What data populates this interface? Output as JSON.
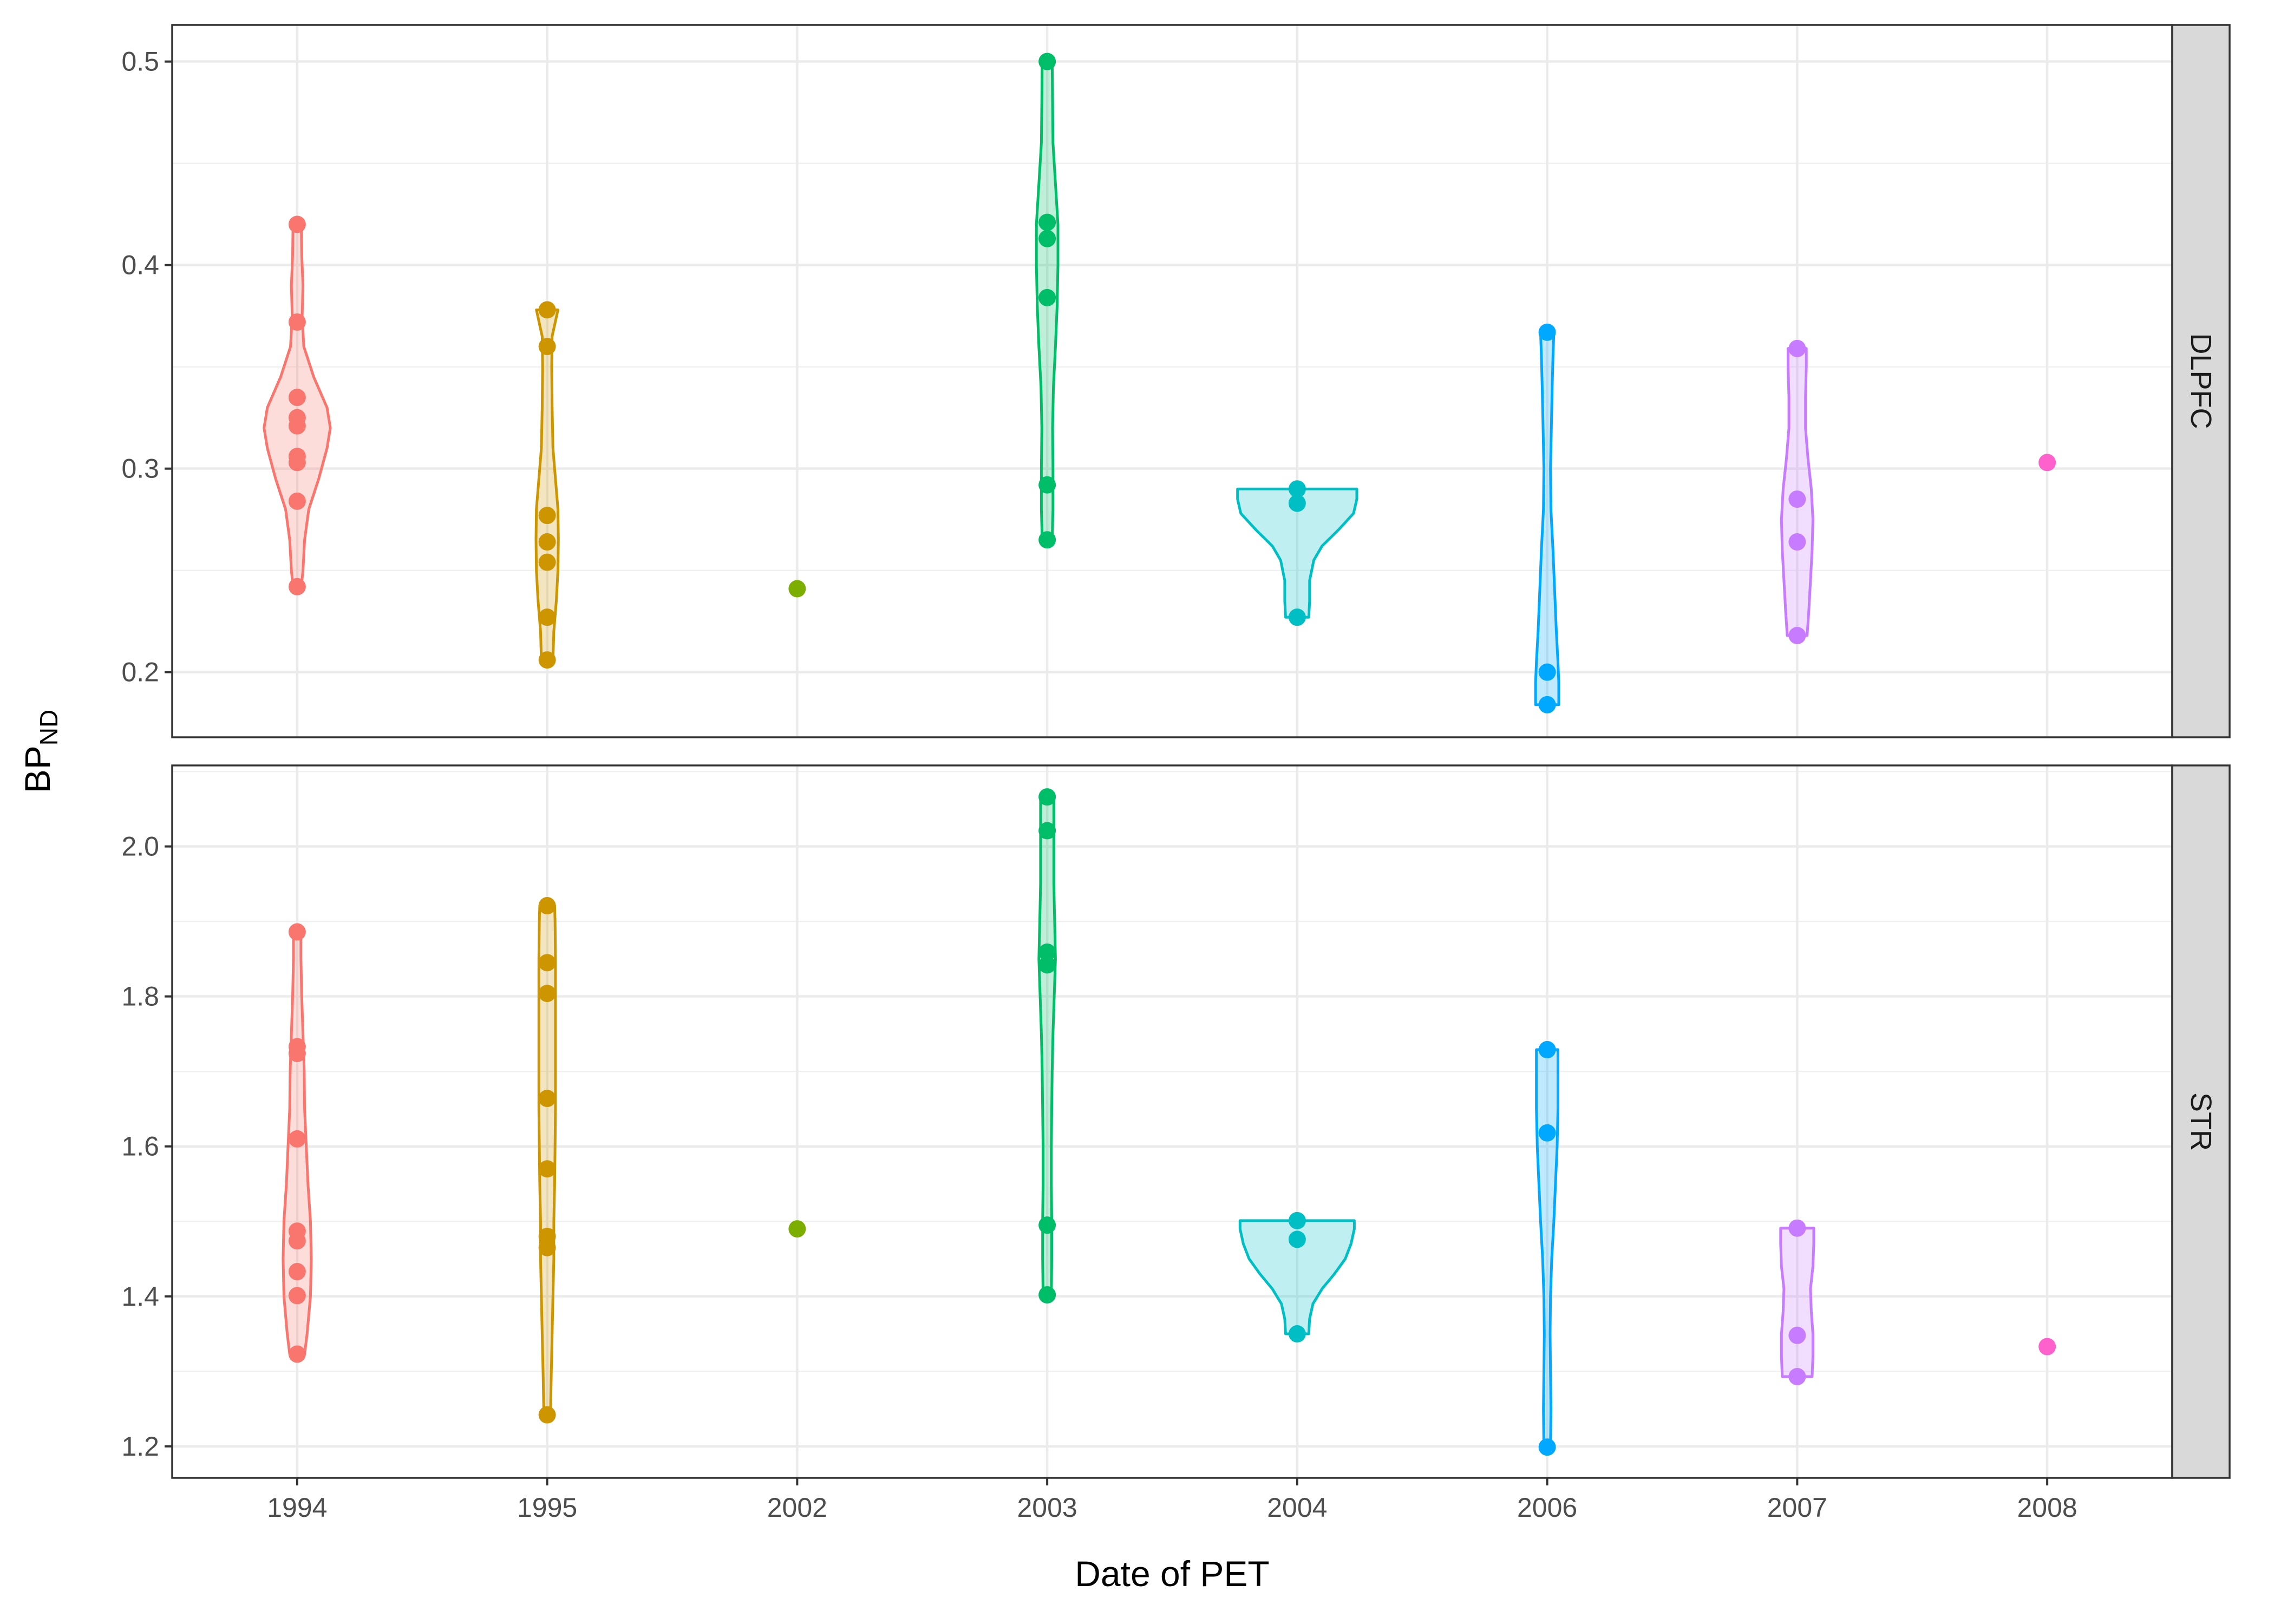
{
  "chart_data": {
    "type": "violin",
    "xlabel": "Date of PET",
    "ylabel": "BP",
    "ylabel_subscript": "ND",
    "categories": [
      "1994",
      "1995",
      "2002",
      "2003",
      "2004",
      "2006",
      "2007",
      "2008"
    ],
    "colors": {
      "1994": "#F8766D",
      "1995": "#CD9600",
      "2002": "#7CAE00",
      "2003": "#00BE67",
      "2004": "#00BFC4",
      "2006": "#00A9FF",
      "2007": "#C77CFF",
      "2008": "#FF61CC"
    },
    "grid": true,
    "panels": [
      {
        "name": "DLPFC",
        "ylim": [
          0.168,
          0.518
        ],
        "yticks": [
          0.2,
          0.3,
          0.4,
          0.5
        ],
        "ytick_labels": [
          "0.2",
          "0.3",
          "0.4",
          "0.5"
        ],
        "groups": [
          {
            "x": "1994",
            "points": [
              0.42,
              0.372,
              0.335,
              0.325,
              0.321,
              0.306,
              0.303,
              0.284,
              0.242
            ],
            "violin": [
              [
                0.242,
                0.05
              ],
              [
                0.25,
                0.07
              ],
              [
                0.265,
                0.09
              ],
              [
                0.28,
                0.14
              ],
              [
                0.295,
                0.26
              ],
              [
                0.31,
                0.36
              ],
              [
                0.32,
                0.4
              ],
              [
                0.33,
                0.36
              ],
              [
                0.345,
                0.2
              ],
              [
                0.36,
                0.08
              ],
              [
                0.375,
                0.06
              ],
              [
                0.39,
                0.07
              ],
              [
                0.405,
                0.055
              ],
              [
                0.42,
                0.05
              ]
            ]
          },
          {
            "x": "1995",
            "points": [
              0.378,
              0.36,
              0.277,
              0.264,
              0.254,
              0.227,
              0.206
            ],
            "violin": [
              [
                0.206,
                0.07
              ],
              [
                0.22,
                0.08
              ],
              [
                0.235,
                0.11
              ],
              [
                0.25,
                0.13
              ],
              [
                0.265,
                0.135
              ],
              [
                0.28,
                0.13
              ],
              [
                0.295,
                0.1
              ],
              [
                0.31,
                0.07
              ],
              [
                0.33,
                0.06
              ],
              [
                0.35,
                0.055
              ],
              [
                0.365,
                0.06
              ],
              [
                0.378,
                0.13
              ]
            ]
          },
          {
            "x": "2002",
            "points": [
              0.241
            ]
          },
          {
            "x": "2003",
            "points": [
              0.5,
              0.421,
              0.413,
              0.384,
              0.292,
              0.265
            ],
            "violin": [
              [
                0.265,
                0.06
              ],
              [
                0.28,
                0.07
              ],
              [
                0.3,
                0.07
              ],
              [
                0.32,
                0.065
              ],
              [
                0.34,
                0.075
              ],
              [
                0.36,
                0.1
              ],
              [
                0.38,
                0.12
              ],
              [
                0.4,
                0.13
              ],
              [
                0.42,
                0.13
              ],
              [
                0.44,
                0.1
              ],
              [
                0.46,
                0.07
              ],
              [
                0.48,
                0.065
              ],
              [
                0.5,
                0.06
              ]
            ]
          },
          {
            "x": "2004",
            "points": [
              0.29,
              0.283,
              0.227
            ],
            "violin": [
              [
                0.227,
                0.14
              ],
              [
                0.235,
                0.15
              ],
              [
                0.245,
                0.15
              ],
              [
                0.255,
                0.2
              ],
              [
                0.262,
                0.3
              ],
              [
                0.27,
                0.5
              ],
              [
                0.278,
                0.68
              ],
              [
                0.285,
                0.72
              ],
              [
                0.29,
                0.72
              ]
            ]
          },
          {
            "x": "2006",
            "points": [
              0.367,
              0.2,
              0.184
            ],
            "violin": [
              [
                0.184,
                0.14
              ],
              [
                0.195,
                0.14
              ],
              [
                0.205,
                0.13
              ],
              [
                0.22,
                0.11
              ],
              [
                0.24,
                0.09
              ],
              [
                0.26,
                0.07
              ],
              [
                0.28,
                0.045
              ],
              [
                0.3,
                0.04
              ],
              [
                0.32,
                0.05
              ],
              [
                0.34,
                0.06
              ],
              [
                0.355,
                0.07
              ],
              [
                0.367,
                0.08
              ]
            ]
          },
          {
            "x": "2007",
            "points": [
              0.359,
              0.285,
              0.264,
              0.218
            ],
            "violin": [
              [
                0.218,
                0.12
              ],
              [
                0.23,
                0.14
              ],
              [
                0.245,
                0.16
              ],
              [
                0.26,
                0.18
              ],
              [
                0.275,
                0.19
              ],
              [
                0.29,
                0.17
              ],
              [
                0.305,
                0.13
              ],
              [
                0.32,
                0.1
              ],
              [
                0.335,
                0.1
              ],
              [
                0.35,
                0.11
              ],
              [
                0.359,
                0.11
              ]
            ]
          },
          {
            "x": "2008",
            "points": [
              0.303
            ]
          }
        ]
      },
      {
        "name": "STR",
        "ylim": [
          1.158,
          2.108
        ],
        "yticks": [
          1.2,
          1.4,
          1.6,
          1.8,
          2.0
        ],
        "ytick_labels": [
          "1.2",
          "1.4",
          "1.6",
          "1.8",
          "2.0"
        ],
        "groups": [
          {
            "x": "1994",
            "points": [
              1.886,
              1.733,
              1.724,
              1.61,
              1.487,
              1.474,
              1.433,
              1.401,
              1.323
            ],
            "violin": [
              [
                1.323,
                0.09
              ],
              [
                1.35,
                0.12
              ],
              [
                1.4,
                0.16
              ],
              [
                1.45,
                0.17
              ],
              [
                1.5,
                0.16
              ],
              [
                1.55,
                0.13
              ],
              [
                1.6,
                0.11
              ],
              [
                1.65,
                0.09
              ],
              [
                1.7,
                0.085
              ],
              [
                1.75,
                0.07
              ],
              [
                1.8,
                0.055
              ],
              [
                1.85,
                0.045
              ],
              [
                1.886,
                0.045
              ]
            ]
          },
          {
            "x": "1995",
            "points": [
              1.921,
              1.845,
              1.804,
              1.664,
              1.57,
              1.48,
              1.465,
              1.242
            ],
            "violin": [
              [
                1.242,
                0.04
              ],
              [
                1.3,
                0.05
              ],
              [
                1.35,
                0.06
              ],
              [
                1.4,
                0.07
              ],
              [
                1.45,
                0.08
              ],
              [
                1.5,
                0.08
              ],
              [
                1.55,
                0.09
              ],
              [
                1.6,
                0.095
              ],
              [
                1.65,
                0.1
              ],
              [
                1.7,
                0.1
              ],
              [
                1.75,
                0.1
              ],
              [
                1.8,
                0.1
              ],
              [
                1.85,
                0.1
              ],
              [
                1.9,
                0.095
              ],
              [
                1.921,
                0.09
              ]
            ]
          },
          {
            "x": "2002",
            "points": [
              1.49
            ]
          },
          {
            "x": "2003",
            "points": [
              2.066,
              2.021,
              1.859,
              1.842,
              1.495,
              1.402
            ],
            "violin": [
              [
                1.402,
                0.05
              ],
              [
                1.45,
                0.055
              ],
              [
                1.5,
                0.055
              ],
              [
                1.55,
                0.05
              ],
              [
                1.6,
                0.05
              ],
              [
                1.65,
                0.055
              ],
              [
                1.7,
                0.06
              ],
              [
                1.75,
                0.07
              ],
              [
                1.8,
                0.085
              ],
              [
                1.85,
                0.1
              ],
              [
                1.9,
                0.09
              ],
              [
                1.95,
                0.08
              ],
              [
                2.0,
                0.08
              ],
              [
                2.066,
                0.08
              ]
            ]
          },
          {
            "x": "2004",
            "points": [
              1.501,
              1.476,
              1.35
            ],
            "violin": [
              [
                1.35,
                0.14
              ],
              [
                1.37,
                0.15
              ],
              [
                1.39,
                0.19
              ],
              [
                1.41,
                0.3
              ],
              [
                1.43,
                0.45
              ],
              [
                1.45,
                0.58
              ],
              [
                1.47,
                0.65
              ],
              [
                1.49,
                0.69
              ],
              [
                1.501,
                0.69
              ]
            ]
          },
          {
            "x": "2006",
            "points": [
              1.729,
              1.618,
              1.199
            ],
            "violin": [
              [
                1.199,
                0.04
              ],
              [
                1.25,
                0.045
              ],
              [
                1.3,
                0.04
              ],
              [
                1.35,
                0.035
              ],
              [
                1.4,
                0.04
              ],
              [
                1.45,
                0.055
              ],
              [
                1.5,
                0.08
              ],
              [
                1.55,
                0.1
              ],
              [
                1.6,
                0.12
              ],
              [
                1.65,
                0.13
              ],
              [
                1.7,
                0.13
              ],
              [
                1.729,
                0.13
              ]
            ]
          },
          {
            "x": "2007",
            "points": [
              1.491,
              1.348,
              1.293
            ],
            "violin": [
              [
                1.293,
                0.18
              ],
              [
                1.32,
                0.19
              ],
              [
                1.35,
                0.19
              ],
              [
                1.38,
                0.17
              ],
              [
                1.41,
                0.16
              ],
              [
                1.44,
                0.19
              ],
              [
                1.47,
                0.2
              ],
              [
                1.491,
                0.2
              ]
            ]
          },
          {
            "x": "2008",
            "points": [
              1.333
            ]
          }
        ]
      }
    ]
  }
}
